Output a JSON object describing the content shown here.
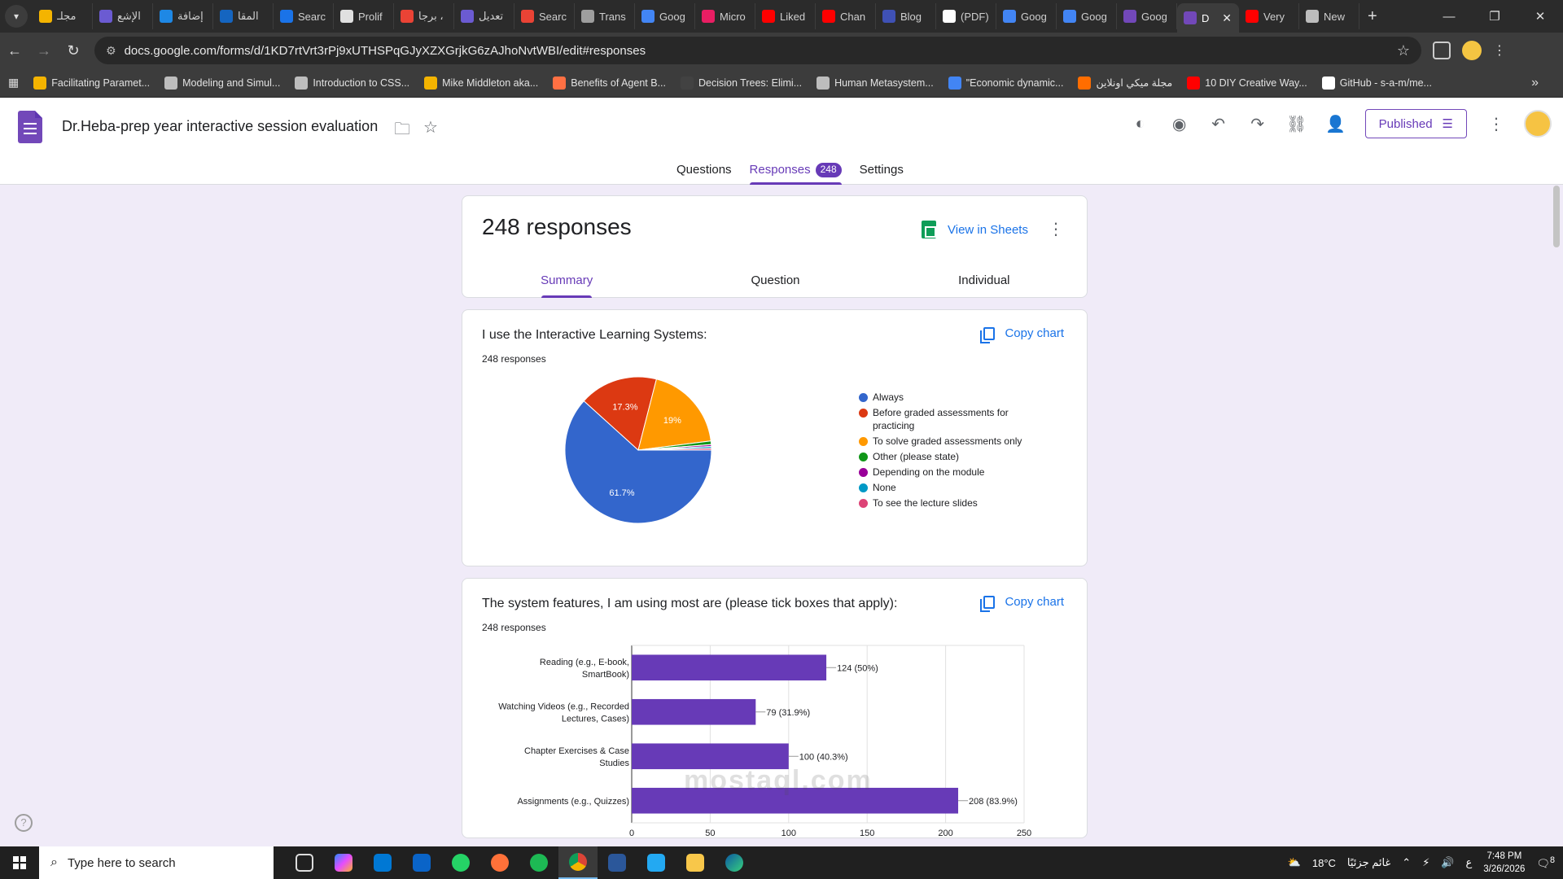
{
  "browser": {
    "tabs": [
      {
        "label": "مجلـ",
        "color": "#f4b400"
      },
      {
        "label": "الإشع",
        "color": "#6b5bd2"
      },
      {
        "label": "إضافة",
        "color": "#1e88e5"
      },
      {
        "label": "المقا",
        "color": "#1565c0"
      },
      {
        "label": "Searc",
        "color": "#1a73e8"
      },
      {
        "label": "Prolif",
        "color": "#e0e0e0"
      },
      {
        "label": "برجا ،",
        "color": "#ea4335"
      },
      {
        "label": "تعديل",
        "color": "#6b5bd2"
      },
      {
        "label": "Searc",
        "color": "#ea4335"
      },
      {
        "label": "Trans",
        "color": "#9e9e9e"
      },
      {
        "label": "Goog",
        "color": "#4285f4"
      },
      {
        "label": "Micro",
        "color": "#e91e63"
      },
      {
        "label": "Liked",
        "color": "#ff0000"
      },
      {
        "label": "Chan",
        "color": "#ff0000"
      },
      {
        "label": "Blog",
        "color": "#3f51b5"
      },
      {
        "label": "(PDF)",
        "color": "#ffffff"
      },
      {
        "label": "Goog",
        "color": "#4285f4"
      },
      {
        "label": "Goog",
        "color": "#4285f4"
      },
      {
        "label": "Goog",
        "color": "#7248b9"
      },
      {
        "label": "D",
        "color": "#7248b9",
        "active": true
      },
      {
        "label": "Very",
        "color": "#ff0000"
      },
      {
        "label": "New",
        "color": "#bdbdbd"
      }
    ],
    "url": "docs.google.com/forms/d/1KD7rtVrt3rPj9xUTHSPqGJyXZXGrjkG6zAJhoNvtWBI/edit#responses",
    "bookmarks": [
      {
        "label": "Facilitating Paramet...",
        "color": "#f4b400"
      },
      {
        "label": "Modeling and Simul...",
        "color": "#bdbdbd"
      },
      {
        "label": "Introduction to CSS...",
        "color": "#bdbdbd"
      },
      {
        "label": "Mike Middleton aka...",
        "color": "#f4b400"
      },
      {
        "label": "Benefits of Agent B...",
        "color": "#ff7043"
      },
      {
        "label": "Decision Trees: Elimi...",
        "color": "#424242"
      },
      {
        "label": "Human Metasystem...",
        "color": "#bdbdbd"
      },
      {
        "label": "\"Economic dynamic...",
        "color": "#4285f4"
      },
      {
        "label": "مجلة ميكي اونلاين",
        "color": "#ff6d00"
      },
      {
        "label": "10 DIY Creative Way...",
        "color": "#ff0000"
      },
      {
        "label": "GitHub - s-a-m/me...",
        "color": "#ffffff"
      }
    ]
  },
  "forms": {
    "title": "Dr.Heba-prep year interactive session evaluation",
    "published_label": "Published",
    "tabs": {
      "questions": "Questions",
      "responses": "Responses",
      "responses_count": "248",
      "settings": "Settings"
    }
  },
  "summary": {
    "title": "248 responses",
    "view_in_sheets": "View in Sheets",
    "tabs": {
      "summary": "Summary",
      "question": "Question",
      "individual": "Individual"
    }
  },
  "q1": {
    "title": "I use the Interactive Learning Systems:",
    "count": "248 responses",
    "copy_chart": "Copy chart"
  },
  "q2": {
    "title": "The system features, I am using most are (please tick boxes that apply):",
    "count": "248 responses",
    "copy_chart": "Copy chart"
  },
  "chart_data": [
    {
      "type": "pie",
      "slices": [
        {
          "label": "Always",
          "value": 61.7,
          "color": "#3366cc",
          "shown_label": "61.7%"
        },
        {
          "label": "Before graded assessments for practicing",
          "value": 17.3,
          "color": "#dc3912",
          "shown_label": "17.3%"
        },
        {
          "label": "To solve graded assessments only",
          "value": 19.0,
          "color": "#ff9900",
          "shown_label": "19%"
        },
        {
          "label": "Other (please state)",
          "value": 0.8,
          "color": "#109618",
          "shown_label": ""
        },
        {
          "label": "Depending on the module",
          "value": 0.4,
          "color": "#990099",
          "shown_label": ""
        },
        {
          "label": "None",
          "value": 0.4,
          "color": "#0099c6",
          "shown_label": ""
        },
        {
          "label": "To see the lecture slides",
          "value": 0.4,
          "color": "#dd4477",
          "shown_label": ""
        }
      ]
    },
    {
      "type": "bar",
      "orientation": "horizontal",
      "categories": [
        [
          "Reading (e.g., E-book,",
          "SmartBook)"
        ],
        [
          "Watching Videos (e.g., Recorded",
          "Lectures, Cases)"
        ],
        [
          "Chapter Exercises & Case",
          "Studies"
        ],
        [
          "Assignments (e.g., Quizzes)"
        ]
      ],
      "values": [
        124,
        79,
        100,
        208
      ],
      "data_labels": [
        "124 (50%)",
        "79 (31.9%)",
        "100 (40.3%)",
        "208 (83.9%)"
      ],
      "xlim": [
        0,
        250
      ],
      "xticks": [
        "0",
        "50",
        "100",
        "150",
        "200",
        "250"
      ],
      "color": "#673ab7",
      "grid": true
    }
  ],
  "overlay": {
    "watermark": "mostaql.com"
  },
  "taskbar": {
    "search_placeholder": "Type here to search",
    "weather": "18°C",
    "weather_text": "غائم جزئيًا",
    "lang": "ع",
    "time": "7:48 PM",
    "date": "3/26/2026",
    "notifications": "8"
  }
}
